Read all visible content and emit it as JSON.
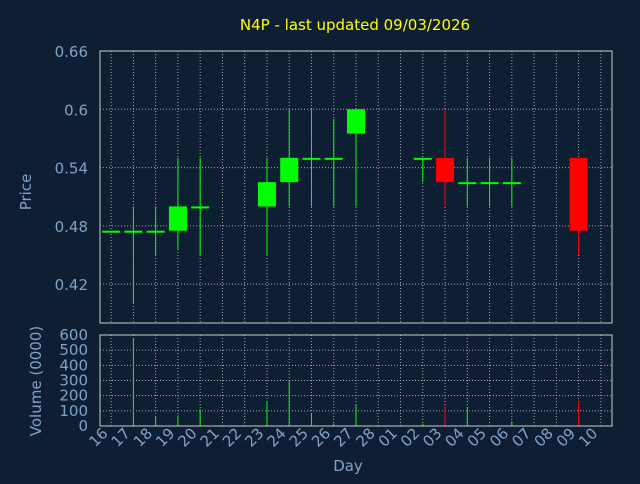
{
  "title": "N4P - last updated 09/03/2026",
  "colors": {
    "background": "#0f1f33",
    "plot_background": "#0f1f33",
    "grid": "#a0a8b0",
    "frame": "#c8c8c8",
    "axis_text": "#7fa3c7",
    "title": "#ffff00",
    "up": "#00ff00",
    "down": "#ff0000"
  },
  "chart_data": [
    {
      "type": "candlestick",
      "ylabel": "Price",
      "ylim": [
        0.38,
        0.66
      ],
      "yticks": [
        0.42,
        0.48,
        0.54,
        0.6,
        0.66
      ],
      "ytick_labels": [
        "0.42",
        "0.48",
        "0.54",
        "0.6",
        "0.66"
      ],
      "grid": true,
      "x": [
        "16",
        "17",
        "18",
        "19",
        "20",
        "21",
        "22",
        "23",
        "24",
        "25",
        "26",
        "27",
        "28",
        "01",
        "02",
        "03",
        "04",
        "05",
        "06",
        "07",
        "08",
        "09",
        "10"
      ],
      "candles": [
        {
          "day": "16",
          "open": 0.475,
          "high": 0.475,
          "low": 0.475,
          "close": 0.475
        },
        {
          "day": "17",
          "open": 0.475,
          "high": 0.5,
          "low": 0.4,
          "close": 0.475
        },
        {
          "day": "18",
          "open": 0.475,
          "high": 0.5,
          "low": 0.45,
          "close": 0.475
        },
        {
          "day": "19",
          "open": 0.475,
          "high": 0.55,
          "low": 0.455,
          "close": 0.5
        },
        {
          "day": "20",
          "open": 0.5,
          "high": 0.55,
          "low": 0.45,
          "close": 0.5
        },
        {
          "day": "23",
          "open": 0.5,
          "high": 0.55,
          "low": 0.45,
          "close": 0.525
        },
        {
          "day": "24",
          "open": 0.525,
          "high": 0.6,
          "low": 0.5,
          "close": 0.55
        },
        {
          "day": "25",
          "open": 0.55,
          "high": 0.6,
          "low": 0.5,
          "close": 0.55
        },
        {
          "day": "26",
          "open": 0.55,
          "high": 0.59,
          "low": 0.5,
          "close": 0.55
        },
        {
          "day": "27",
          "open": 0.575,
          "high": 0.6,
          "low": 0.5,
          "close": 0.6
        },
        {
          "day": "02",
          "open": 0.55,
          "high": 0.55,
          "low": 0.525,
          "close": 0.55
        },
        {
          "day": "03",
          "open": 0.55,
          "high": 0.6,
          "low": 0.5,
          "close": 0.525
        },
        {
          "day": "04",
          "open": 0.525,
          "high": 0.55,
          "low": 0.5,
          "close": 0.525
        },
        {
          "day": "05",
          "open": 0.525,
          "high": 0.55,
          "low": 0.5,
          "close": 0.525
        },
        {
          "day": "06",
          "open": 0.525,
          "high": 0.55,
          "low": 0.5,
          "close": 0.525
        },
        {
          "day": "09",
          "open": 0.55,
          "high": 0.55,
          "low": 0.45,
          "close": 0.475
        }
      ]
    },
    {
      "type": "bar",
      "ylabel": "Volume (0000)",
      "xlabel": "Day",
      "ylim": [
        0,
        600
      ],
      "yticks": [
        0,
        100,
        200,
        300,
        400,
        500,
        600
      ],
      "ytick_labels": [
        "0",
        "100",
        "200",
        "300",
        "400",
        "500",
        "600"
      ],
      "grid": true,
      "x": [
        "16",
        "17",
        "18",
        "19",
        "20",
        "21",
        "22",
        "23",
        "24",
        "25",
        "26",
        "27",
        "28",
        "01",
        "02",
        "03",
        "04",
        "05",
        "06",
        "07",
        "08",
        "09",
        "10"
      ],
      "bars": [
        {
          "day": "16",
          "value": 0,
          "direction": "flat"
        },
        {
          "day": "17",
          "value": 575,
          "direction": "up"
        },
        {
          "day": "18",
          "value": 60,
          "direction": "up"
        },
        {
          "day": "19",
          "value": 70,
          "direction": "up"
        },
        {
          "day": "20",
          "value": 110,
          "direction": "up"
        },
        {
          "day": "23",
          "value": 165,
          "direction": "up"
        },
        {
          "day": "24",
          "value": 300,
          "direction": "up"
        },
        {
          "day": "25",
          "value": 80,
          "direction": "up"
        },
        {
          "day": "26",
          "value": 15,
          "direction": "up"
        },
        {
          "day": "27",
          "value": 140,
          "direction": "up"
        },
        {
          "day": "02",
          "value": 15,
          "direction": "up"
        },
        {
          "day": "03",
          "value": 140,
          "direction": "down"
        },
        {
          "day": "04",
          "value": 120,
          "direction": "up"
        },
        {
          "day": "05",
          "value": 0,
          "direction": "flat"
        },
        {
          "day": "06",
          "value": 30,
          "direction": "up"
        },
        {
          "day": "09",
          "value": 165,
          "direction": "down"
        }
      ]
    }
  ]
}
